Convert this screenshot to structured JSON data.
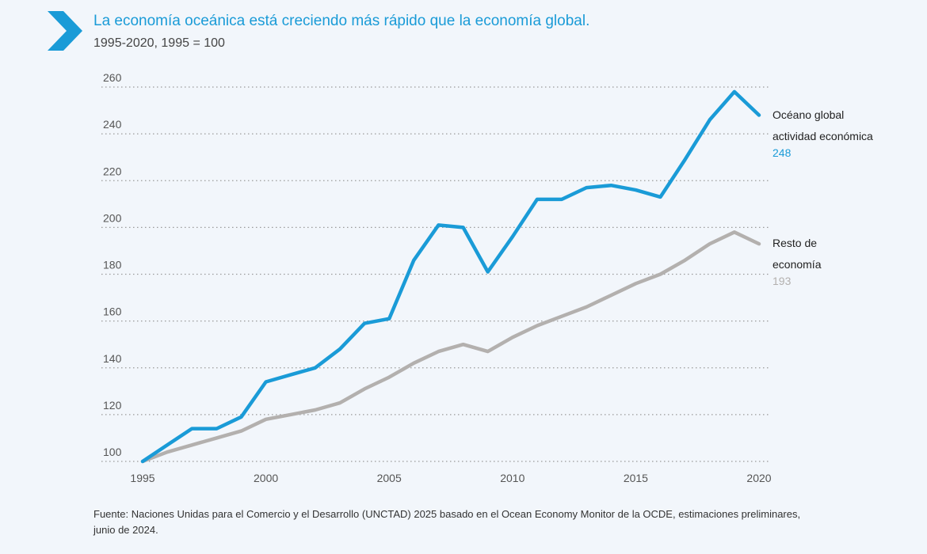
{
  "header": {
    "icon": "chevron-right-icon",
    "title": "La economía oceánica está creciendo más rápido que la economía global.",
    "subtitle": "1995-2020, 1995 = 100"
  },
  "source_note": "Fuente: Naciones Unidas para el Comercio y el Desarrollo (UNCTAD) 2025 basado en el Ocean Economy Monitor de la OCDE, estimaciones preliminares, junio de 2024.",
  "colors": {
    "accent": "#1a9bd7",
    "ocean_series": "#1a9bd7",
    "rest_series": "#b3b0ae",
    "grid": "#9a9a9a",
    "background": "#f2f6fb"
  },
  "chart_data": {
    "type": "line",
    "title": "La economía oceánica está creciendo más rápido que la economía global.",
    "subtitle": "1995-2020, 1995 = 100",
    "xlabel": "",
    "ylabel": "",
    "x": [
      1995,
      1996,
      1997,
      1998,
      1999,
      2000,
      2001,
      2002,
      2003,
      2004,
      2005,
      2006,
      2007,
      2008,
      2009,
      2010,
      2011,
      2012,
      2013,
      2014,
      2015,
      2016,
      2017,
      2018,
      2019,
      2020
    ],
    "x_ticks": [
      1995,
      2000,
      2005,
      2010,
      2015,
      2020
    ],
    "y_ticks": [
      100,
      120,
      140,
      160,
      180,
      200,
      220,
      240,
      260
    ],
    "ylim": [
      100,
      260
    ],
    "xlim": [
      1995,
      2020
    ],
    "grid": "horizontal dotted",
    "legend": "end-of-line labels on the right",
    "series": [
      {
        "name_lines": [
          "Océano global",
          "actividad económica"
        ],
        "end_value": "248",
        "color": "#1a9bd7",
        "values": [
          100,
          107,
          114,
          114,
          119,
          134,
          137,
          140,
          148,
          159,
          161,
          186,
          201,
          200,
          181,
          196,
          212,
          212,
          217,
          218,
          216,
          213,
          229,
          246,
          258,
          248
        ]
      },
      {
        "name_lines": [
          "Resto de",
          "economía"
        ],
        "end_value": "193",
        "color": "#b3b0ae",
        "values": [
          100,
          104,
          107,
          110,
          113,
          118,
          120,
          122,
          125,
          131,
          136,
          142,
          147,
          150,
          147,
          153,
          158,
          162,
          166,
          171,
          176,
          180,
          186,
          193,
          198,
          193
        ]
      }
    ]
  }
}
